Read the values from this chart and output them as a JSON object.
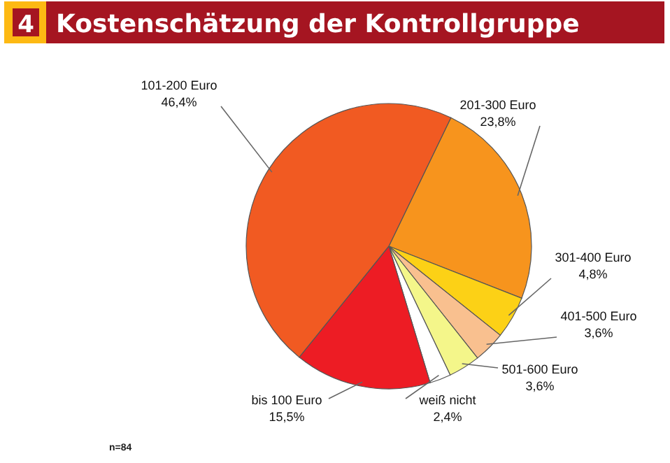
{
  "chart_data": {
    "type": "pie",
    "title": "Kostenschätzung der Kontrollgruppe",
    "categories": [
      "201-300 Euro",
      "301-400 Euro",
      "401-500 Euro",
      "501-600 Euro",
      "weiß nicht",
      "bis 100 Euro",
      "101-200 Euro"
    ],
    "values": [
      23.8,
      4.8,
      3.6,
      3.6,
      2.4,
      15.5,
      46.4
    ],
    "colors": [
      "#f7941d",
      "#fcd116",
      "#f9c08f",
      "#f4f68a",
      "#ffffff",
      "#ed1c24",
      "#f15a22"
    ],
    "value_labels": [
      "23,8%",
      "4,8%",
      "3,6%",
      "3,6%",
      "2,4%",
      "15,5%",
      "46,4%"
    ],
    "annotations": [
      "4",
      "n=84"
    ]
  }
}
